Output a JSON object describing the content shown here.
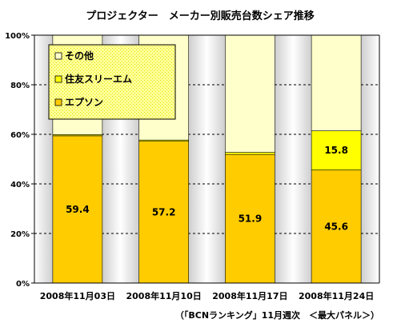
{
  "chart_data": {
    "type": "bar",
    "stacked": true,
    "percent_stacked": true,
    "title": "プロジェクター　メーカー別販売台数シェア推移",
    "categories": [
      "2008年11月03日",
      "2008年11月10日",
      "2008年11月17日",
      "2008年11月24日"
    ],
    "series": [
      {
        "name": "エプソン",
        "values": [
          59.4,
          57.2,
          51.9,
          45.6
        ],
        "color": "#FFCC00",
        "labels": [
          "59.4",
          "57.2",
          "51.9",
          "45.6"
        ]
      },
      {
        "name": "住友スリーエム",
        "values": [
          0.5,
          0.5,
          0.8,
          15.8
        ],
        "color": "#FFFF00",
        "labels": [
          "",
          "",
          "",
          "15.8"
        ]
      },
      {
        "name": "その他",
        "values": [
          40.1,
          42.3,
          47.3,
          38.6
        ],
        "color": "#FFFFCC",
        "labels": [
          "",
          "",
          "",
          ""
        ]
      }
    ],
    "legend_order": [
      "その他",
      "住友スリーエム",
      "エプソン"
    ],
    "ylim": [
      0,
      100
    ],
    "yticks": [
      "0%",
      "20%",
      "40%",
      "60%",
      "80%",
      "100%"
    ],
    "grid": true,
    "legend_position": "top-left",
    "source_note": "（「BCNランキング」11月週次　＜最大パネル＞）"
  }
}
